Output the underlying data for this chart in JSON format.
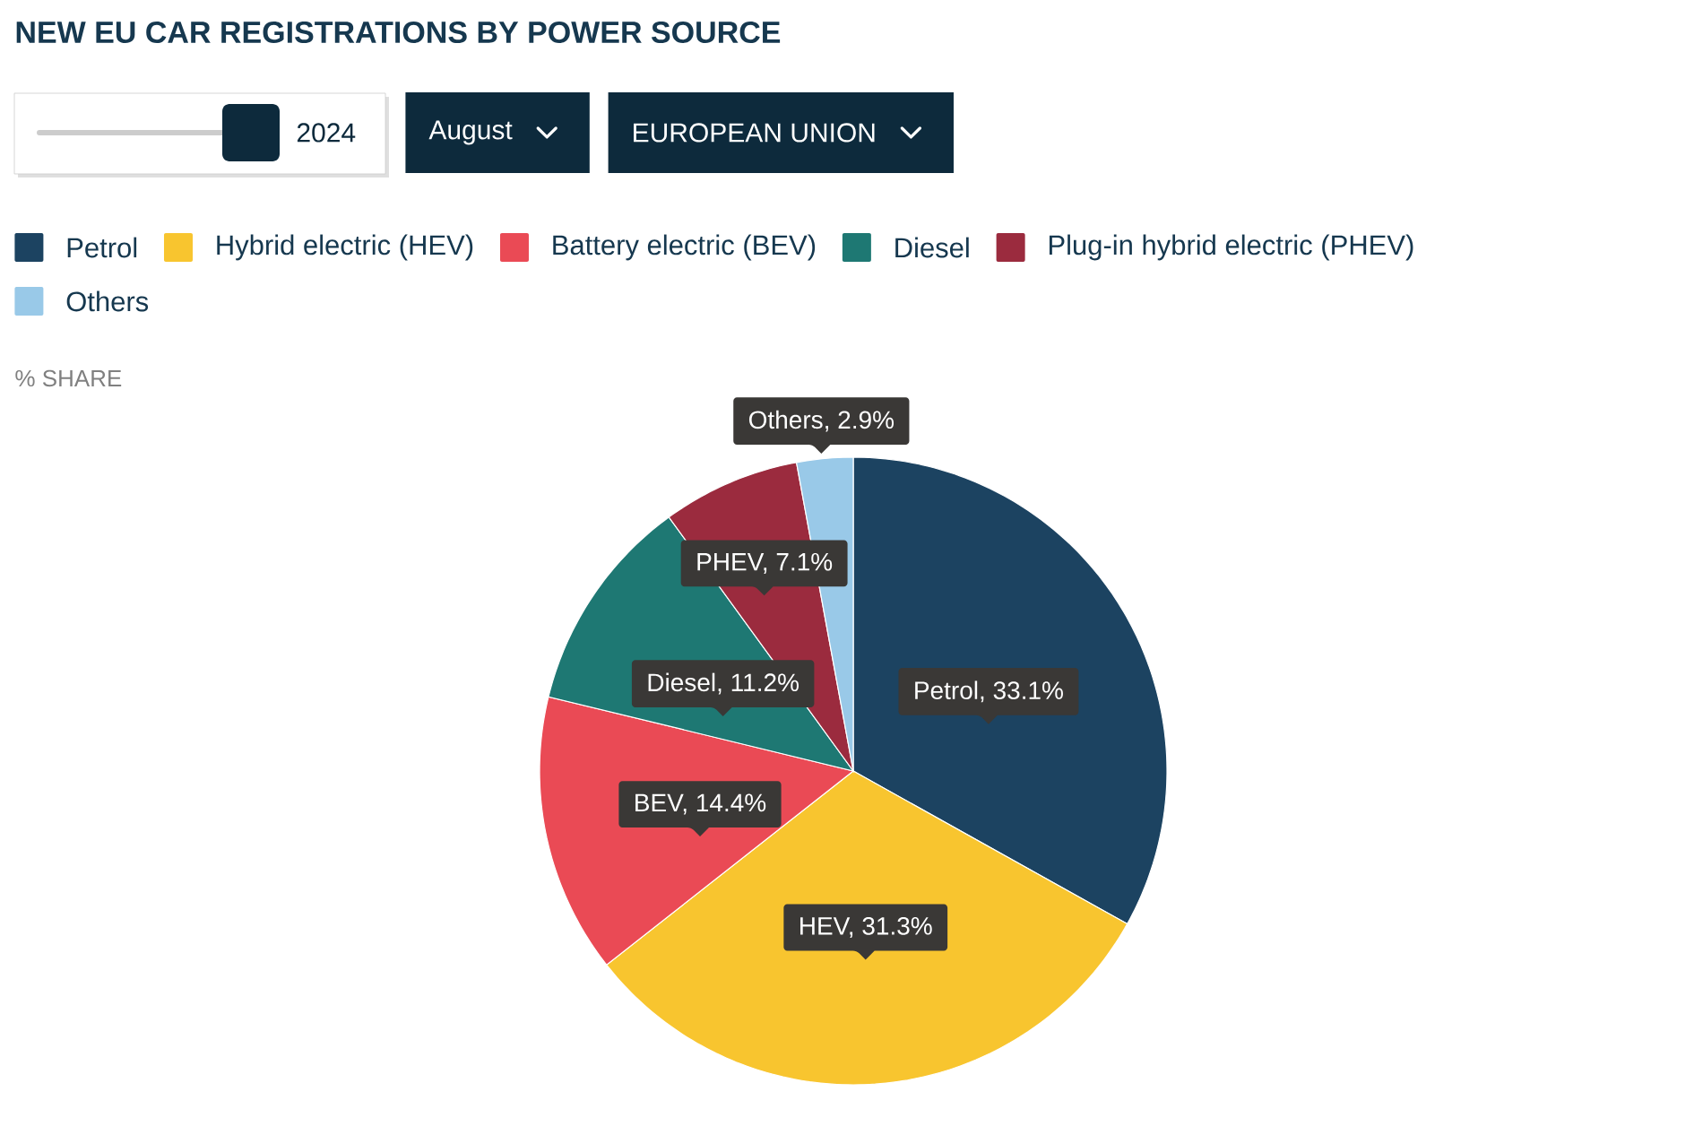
{
  "chart_data": {
    "type": "pie",
    "title": "NEW EU CAR REGISTRATIONS BY POWER SOURCE",
    "subtitle": "% SHARE",
    "annotations": [
      "2024",
      "August",
      "EUROPEAN UNION"
    ],
    "categories": [
      "Petrol",
      "Hybrid electric (HEV)",
      "Battery electric (BEV)",
      "Diesel",
      "Plug-in hybrid electric (PHEV)",
      "Others"
    ],
    "values": [
      33.1,
      31.3,
      14.4,
      11.2,
      7.1,
      2.9
    ],
    "colors": [
      "#1c4361",
      "#f8c52f",
      "#ea4a55",
      "#1e7873",
      "#9b2b3e",
      "#99c9e8"
    ],
    "value_labels": [
      "Petrol, 33.1%",
      "HEV, 31.3%",
      "BEV, 14.4%",
      "Diesel, 11.2%",
      "PHEV, 7.1%",
      "Others, 2.9%"
    ],
    "legend": "top"
  }
}
